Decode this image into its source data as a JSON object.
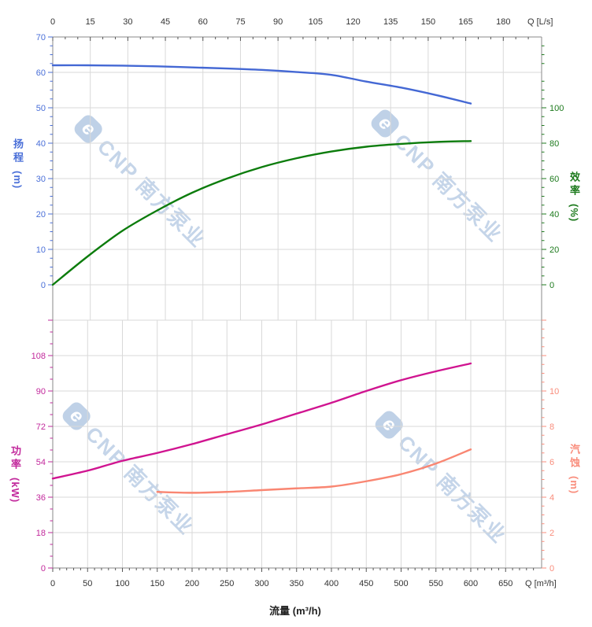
{
  "brand_watermark": {
    "logo_letter": "e",
    "text": "CNP 南方泵业"
  },
  "titles": {
    "flow_axis": "流量 (m³/h)",
    "top_flow_unit": "Q [L/s]",
    "bottom_flow_unit": "Q [m³/h]",
    "head": {
      "cn": "扬程",
      "unit": "(m)"
    },
    "efficiency": {
      "cn": "效率",
      "unit": "(%)"
    },
    "power": {
      "cn": "功率",
      "unit": "(kW)"
    },
    "npsh": {
      "cn": "汽蚀",
      "unit": "(m)"
    }
  },
  "colors": {
    "head": "#4468d4",
    "efficiency": "#0c7c0c",
    "power": "#d01490",
    "npsh": "#f98672",
    "grid": "#d9d9d9",
    "spine": "#8a8a8a",
    "tick_text": "#333333",
    "xtick": "#555555",
    "head_text": "#4a6fd8",
    "eff_text": "#1d7a1d",
    "power_text": "#c2299c",
    "npsh_text": "#f98d7c"
  },
  "axes": {
    "top_x": {
      "unit": "L/s",
      "ticks": [
        0,
        15,
        30,
        45,
        60,
        75,
        90,
        105,
        120,
        135,
        150,
        165,
        180
      ],
      "minor_step": 5
    },
    "bottom_x": {
      "unit": "m³/h",
      "ticks": [
        0,
        50,
        100,
        150,
        200,
        250,
        300,
        350,
        400,
        450,
        500,
        550,
        600,
        650
      ],
      "minor_step": 10
    },
    "head_y": {
      "ticks": [
        0,
        10,
        20,
        30,
        40,
        50,
        60,
        70
      ],
      "minor_step": 2.5
    },
    "eff_y": {
      "ticks": [
        0,
        20,
        40,
        60,
        80,
        100
      ],
      "minor_step": 5
    },
    "power_y": {
      "ticks": [
        0,
        18,
        36,
        54,
        72,
        90,
        108
      ],
      "minor_step": 6
    },
    "npsh_y": {
      "ticks": [
        0,
        2,
        4,
        6,
        8,
        10
      ],
      "minor_step": 0.5
    }
  },
  "chart_data": [
    {
      "type": "line",
      "panel": "head-efficiency",
      "x_label_top": "Q [L/s]",
      "x_range_top_ls": [
        0,
        180
      ],
      "x_unit": "m³/h",
      "x_range": [
        0,
        650
      ],
      "grid": true,
      "series": [
        {
          "name": "head",
          "label": "扬程",
          "unit": "m",
          "axis_range": [
            0,
            70
          ],
          "x": [
            0,
            50,
            100,
            150,
            200,
            250,
            300,
            350,
            400,
            450,
            500,
            550,
            600
          ],
          "y": [
            62,
            62,
            61.9,
            61.7,
            61.4,
            61.1,
            60.7,
            60.1,
            59.3,
            57.4,
            55.7,
            53.6,
            51.2
          ]
        },
        {
          "name": "efficiency",
          "label": "效率",
          "unit": "%",
          "axis_range": [
            0,
            100
          ],
          "x": [
            0,
            50,
            100,
            150,
            200,
            250,
            300,
            350,
            400,
            450,
            500,
            550,
            600
          ],
          "y": [
            0,
            16,
            30.5,
            42,
            52,
            60,
            66.5,
            71.5,
            75.3,
            78,
            79.6,
            80.7,
            81.2
          ]
        }
      ]
    },
    {
      "type": "line",
      "panel": "power-npsh",
      "x_label": "流量 (m³/h)",
      "x_unit": "m³/h",
      "x_range": [
        0,
        650
      ],
      "grid": true,
      "series": [
        {
          "name": "power",
          "label": "功率",
          "unit": "kW",
          "axis_range": [
            0,
            108
          ],
          "x": [
            0,
            50,
            100,
            150,
            200,
            250,
            300,
            350,
            400,
            450,
            500,
            550,
            600
          ],
          "y": [
            45.5,
            49.5,
            54.5,
            58.5,
            63,
            68,
            73,
            78.5,
            84,
            90,
            95.5,
            100,
            104
          ]
        },
        {
          "name": "npsh",
          "label": "汽蚀",
          "unit": "m",
          "axis_range": [
            0,
            10
          ],
          "x": [
            150,
            200,
            250,
            300,
            350,
            400,
            450,
            500,
            550,
            600
          ],
          "y": [
            4.3,
            4.25,
            4.3,
            4.4,
            4.5,
            4.6,
            4.9,
            5.3,
            5.9,
            6.7
          ]
        }
      ]
    }
  ]
}
